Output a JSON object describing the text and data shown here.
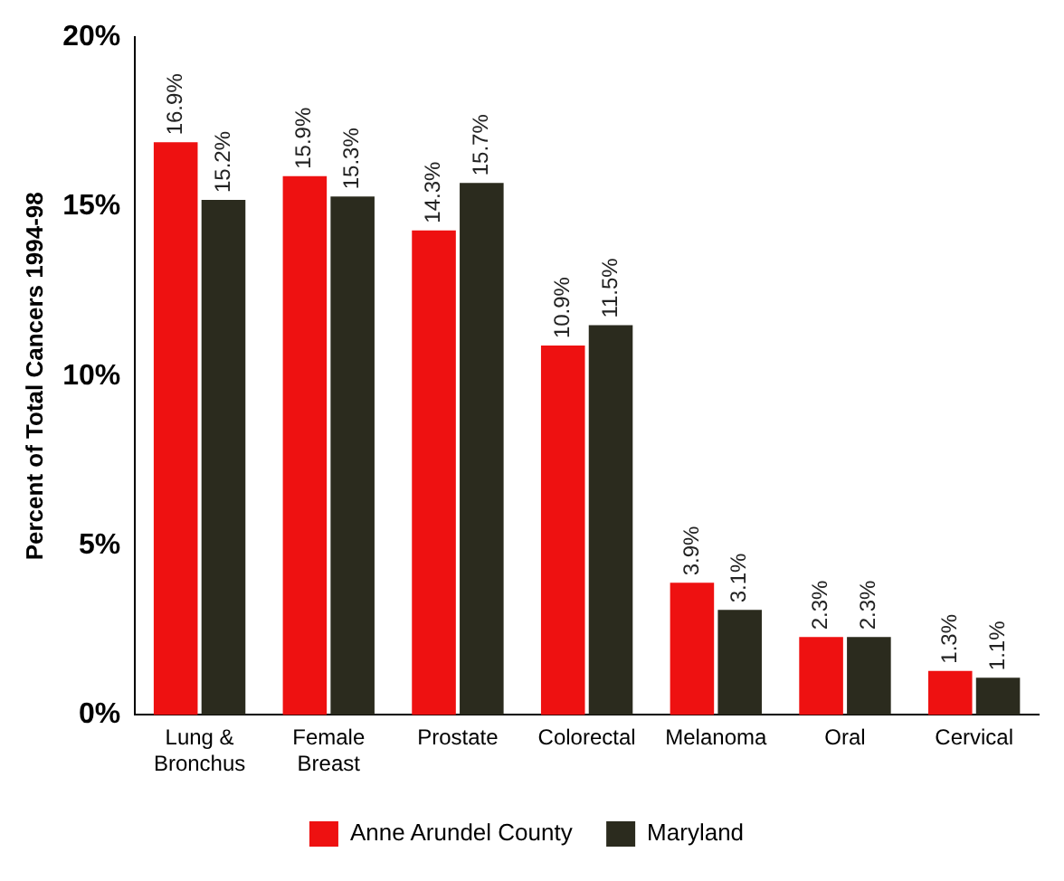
{
  "chart_data": {
    "type": "bar",
    "ylabel": "Percent of Total Cancers 1994-98",
    "categories": [
      "Lung & Bronchus",
      "Female Breast",
      "Prostate",
      "Colorectal",
      "Melanoma",
      "Oral",
      "Cervical"
    ],
    "series": [
      {
        "name": "Anne Arundel County",
        "color": "#ee1111",
        "values": [
          16.9,
          15.9,
          14.3,
          10.9,
          3.9,
          2.3,
          1.3
        ],
        "value_labels": [
          "16.9%",
          "15.9%",
          "14.3%",
          "10.9%",
          "3.9%",
          "2.3%",
          "1.3%"
        ]
      },
      {
        "name": "Maryland",
        "color": "#2b2b1e",
        "values": [
          15.2,
          15.3,
          15.7,
          11.5,
          3.1,
          2.3,
          1.1
        ],
        "value_labels": [
          "15.2%",
          "15.3%",
          "15.7%",
          "11.5%",
          "3.1%",
          "2.3%",
          "1.1%"
        ]
      }
    ],
    "ylim": [
      0,
      20
    ],
    "yticks": [
      {
        "value": 0,
        "label": "0%"
      },
      {
        "value": 5,
        "label": "5%"
      },
      {
        "value": 10,
        "label": "10%"
      },
      {
        "value": 15,
        "label": "15%"
      },
      {
        "value": 20,
        "label": "20%"
      }
    ],
    "grid": false,
    "legend": "bottom"
  }
}
